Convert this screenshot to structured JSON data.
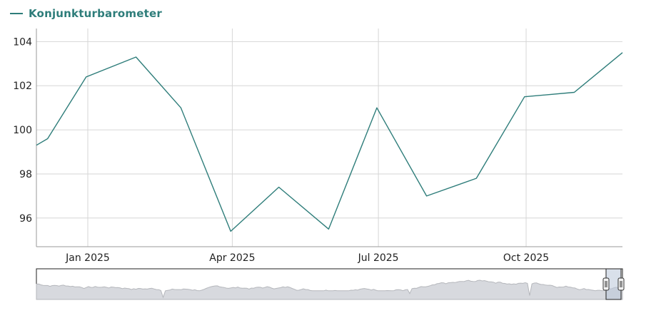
{
  "chart_data": {
    "type": "line",
    "title": "",
    "xlabel": "",
    "ylabel": "",
    "series": [
      {
        "name": "Konjunkturbarometer",
        "color": "#2e7d7a",
        "points": [
          [
            "2024-11-30",
            99.3
          ],
          [
            "2024-12-07",
            99.6
          ],
          [
            "2024-12-31",
            102.4
          ],
          [
            "2025-01-31",
            103.3
          ],
          [
            "2025-02-28",
            101.0
          ],
          [
            "2025-03-31",
            95.4
          ],
          [
            "2025-04-30",
            97.4
          ],
          [
            "2025-05-31",
            95.5
          ],
          [
            "2025-06-30",
            101.0
          ],
          [
            "2025-07-31",
            97.0
          ],
          [
            "2025-08-31",
            97.8
          ],
          [
            "2025-09-30",
            101.5
          ],
          [
            "2025-10-31",
            101.7
          ],
          [
            "2025-11-30",
            103.5
          ]
        ]
      }
    ],
    "ylim": [
      94.7,
      104.4
    ],
    "yticks": [
      96,
      98,
      100,
      102,
      104
    ],
    "xlim": [
      "2024-11-30",
      "2025-11-30"
    ],
    "xticks": [
      {
        "label": "Jan 2025",
        "date": "2025-01-01"
      },
      {
        "label": "Apr 2025",
        "date": "2025-04-01"
      },
      {
        "label": "Jul 2025",
        "date": "2025-07-01"
      },
      {
        "label": "Oct 2025",
        "date": "2025-10-01"
      }
    ],
    "grid": true,
    "legend_position": "top-left",
    "navigator": {
      "selected_range": "end",
      "fill_color": "#d7d9de",
      "line_color": "#b5b7bc",
      "selection_color": "#b9c6d8"
    }
  }
}
